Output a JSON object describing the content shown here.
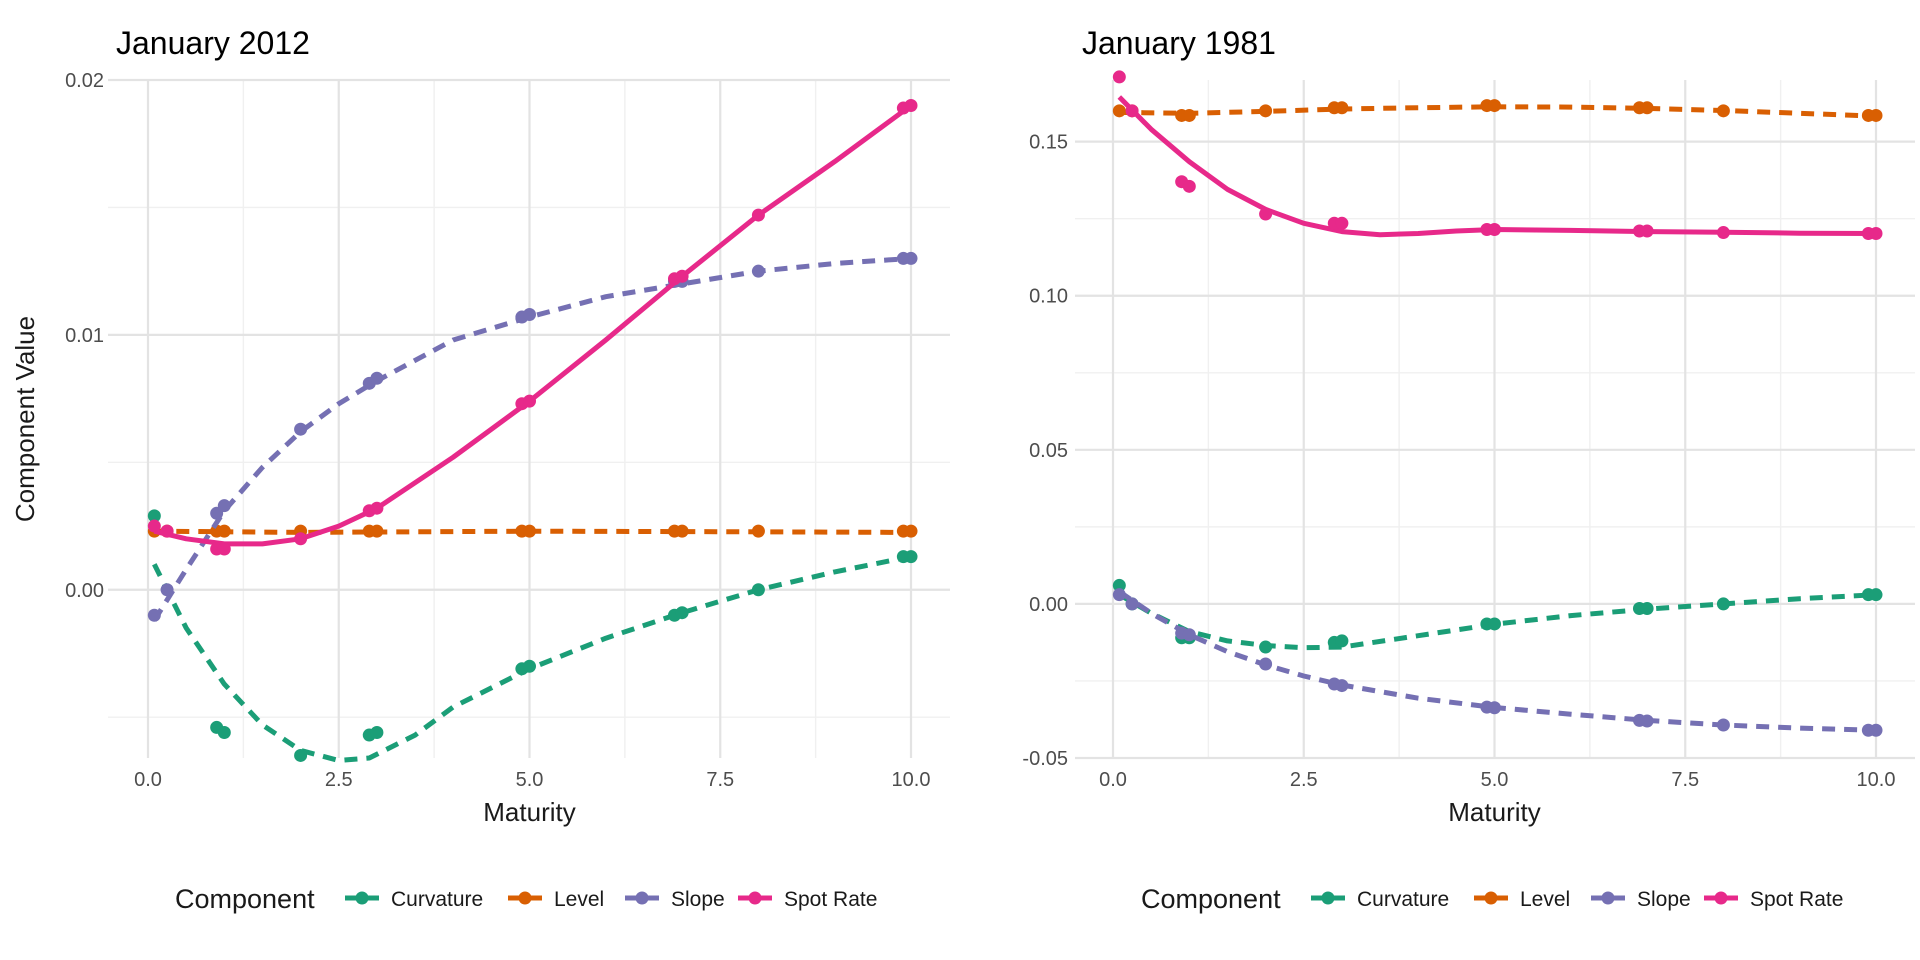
{
  "chart_data": [
    {
      "type": "line",
      "title": "January 2012",
      "xlabel": "Maturity",
      "ylabel": "Component Value",
      "xlim": [
        0,
        10
      ],
      "ylim": [
        -0.0066,
        0.02
      ],
      "xticks": [
        "0.0",
        "2.5",
        "5.0",
        "7.5",
        "10.0"
      ],
      "xtick_values": [
        0,
        2.5,
        5,
        7.5,
        10
      ],
      "yticks": [
        "0.00",
        "0.01",
        "0.02"
      ],
      "ytick_values": [
        0,
        0.01,
        0.02
      ],
      "grid": true,
      "legend_title": "Component",
      "legend_position": "bottom",
      "series": [
        {
          "name": "Curvature",
          "color": "#1B9E77",
          "line": "dashed",
          "points": [
            [
              0.083,
              0.0029
            ],
            [
              0.9,
              -0.0054
            ],
            [
              1.0,
              -0.0056
            ],
            [
              2.0,
              -0.0065
            ],
            [
              2.9,
              -0.0057
            ],
            [
              3.0,
              -0.0056
            ],
            [
              4.9,
              -0.0031
            ],
            [
              5.0,
              -0.003
            ],
            [
              6.9,
              -0.001
            ],
            [
              7.0,
              -0.0009
            ],
            [
              8.0,
              0.0
            ],
            [
              9.9,
              0.0013
            ],
            [
              10.0,
              0.0013
            ]
          ],
          "curve": [
            [
              0.083,
              0.001
            ],
            [
              0.5,
              -0.0015
            ],
            [
              1.0,
              -0.0037
            ],
            [
              1.5,
              -0.0053
            ],
            [
              2.0,
              -0.0063
            ],
            [
              2.5,
              -0.0067
            ],
            [
              2.9,
              -0.0066
            ],
            [
              3.5,
              -0.0057
            ],
            [
              4.0,
              -0.0046
            ],
            [
              5.0,
              -0.0031
            ],
            [
              6.0,
              -0.0019
            ],
            [
              7.0,
              -0.0009
            ],
            [
              8.0,
              0.0
            ],
            [
              9.0,
              0.0007
            ],
            [
              10.0,
              0.0013
            ]
          ]
        },
        {
          "name": "Level",
          "color": "#D95F02",
          "line": "dashed",
          "points": [
            [
              0.083,
              0.0023
            ],
            [
              0.25,
              0.0023
            ],
            [
              0.9,
              0.0023
            ],
            [
              1.0,
              0.0023
            ],
            [
              2.0,
              0.0023
            ],
            [
              2.9,
              0.0023
            ],
            [
              3.0,
              0.0023
            ],
            [
              4.9,
              0.0023
            ],
            [
              5.0,
              0.0023
            ],
            [
              6.9,
              0.0023
            ],
            [
              7.0,
              0.0023
            ],
            [
              8.0,
              0.0023
            ],
            [
              9.9,
              0.0023
            ],
            [
              10.0,
              0.0023
            ]
          ],
          "curve": [
            [
              0.083,
              0.0023
            ],
            [
              2.0,
              0.00225
            ],
            [
              5.0,
              0.0023
            ],
            [
              7.5,
              0.00228
            ],
            [
              10.0,
              0.00225
            ]
          ]
        },
        {
          "name": "Slope",
          "color": "#7570B3",
          "line": "dashed",
          "points": [
            [
              0.083,
              -0.001
            ],
            [
              0.25,
              0.0
            ],
            [
              0.9,
              0.003
            ],
            [
              1.0,
              0.0033
            ],
            [
              2.0,
              0.0063
            ],
            [
              2.9,
              0.0081
            ],
            [
              3.0,
              0.0083
            ],
            [
              4.9,
              0.0107
            ],
            [
              5.0,
              0.0108
            ],
            [
              6.9,
              0.0121
            ],
            [
              7.0,
              0.0121
            ],
            [
              8.0,
              0.0125
            ],
            [
              9.9,
              0.013
            ],
            [
              10.0,
              0.013
            ]
          ],
          "curve": [
            [
              0.083,
              -0.0012
            ],
            [
              0.5,
              0.0008
            ],
            [
              1.0,
              0.0031
            ],
            [
              1.5,
              0.0048
            ],
            [
              2.0,
              0.0062
            ],
            [
              2.5,
              0.0073
            ],
            [
              3.0,
              0.0082
            ],
            [
              4.0,
              0.0098
            ],
            [
              5.0,
              0.0107
            ],
            [
              6.0,
              0.0115
            ],
            [
              7.0,
              0.012
            ],
            [
              8.0,
              0.0125
            ],
            [
              9.0,
              0.0128
            ],
            [
              10.0,
              0.013
            ]
          ]
        },
        {
          "name": "Spot Rate",
          "color": "#E7298A",
          "line": "solid",
          "points": [
            [
              0.083,
              0.0025
            ],
            [
              0.25,
              0.0023
            ],
            [
              0.9,
              0.0016
            ],
            [
              1.0,
              0.0016
            ],
            [
              2.0,
              0.002
            ],
            [
              2.9,
              0.0031
            ],
            [
              3.0,
              0.0032
            ],
            [
              4.9,
              0.0073
            ],
            [
              5.0,
              0.0074
            ],
            [
              6.9,
              0.0122
            ],
            [
              7.0,
              0.0123
            ],
            [
              8.0,
              0.0147
            ],
            [
              9.9,
              0.0189
            ],
            [
              10.0,
              0.019
            ]
          ],
          "curve": [
            [
              0.083,
              0.0023
            ],
            [
              0.5,
              0.002
            ],
            [
              1.0,
              0.0018
            ],
            [
              1.5,
              0.0018
            ],
            [
              2.0,
              0.002
            ],
            [
              2.5,
              0.0025
            ],
            [
              3.0,
              0.0032
            ],
            [
              3.5,
              0.0042
            ],
            [
              4.0,
              0.0052
            ],
            [
              4.5,
              0.0063
            ],
            [
              5.0,
              0.0074
            ],
            [
              6.0,
              0.0098
            ],
            [
              7.0,
              0.0123
            ],
            [
              8.0,
              0.0147
            ],
            [
              9.0,
              0.0168
            ],
            [
              10.0,
              0.019
            ]
          ]
        }
      ]
    },
    {
      "type": "line",
      "title": "January 1981",
      "xlabel": "Maturity",
      "ylabel": "",
      "xlim": [
        0,
        10
      ],
      "ylim": [
        -0.05,
        0.17
      ],
      "xticks": [
        "0.0",
        "2.5",
        "5.0",
        "7.5",
        "10.0"
      ],
      "xtick_values": [
        0,
        2.5,
        5,
        7.5,
        10
      ],
      "yticks": [
        "-0.05",
        "0.00",
        "0.05",
        "0.10",
        "0.15"
      ],
      "ytick_values": [
        -0.05,
        0,
        0.05,
        0.1,
        0.15
      ],
      "grid": true,
      "legend_title": "Component",
      "legend_position": "bottom",
      "series": [
        {
          "name": "Curvature",
          "color": "#1B9E77",
          "line": "dashed",
          "points": [
            [
              0.083,
              0.006
            ],
            [
              0.25,
              0.0
            ],
            [
              0.9,
              -0.011
            ],
            [
              1.0,
              -0.011
            ],
            [
              2.0,
              -0.014
            ],
            [
              2.9,
              -0.0125
            ],
            [
              3.0,
              -0.012
            ],
            [
              4.9,
              -0.0065
            ],
            [
              5.0,
              -0.0065
            ],
            [
              6.9,
              -0.0015
            ],
            [
              7.0,
              -0.0015
            ],
            [
              8.0,
              0.0
            ],
            [
              9.9,
              0.003
            ],
            [
              10.0,
              0.003
            ]
          ],
          "curve": [
            [
              0.083,
              0.003
            ],
            [
              0.5,
              -0.003
            ],
            [
              1.0,
              -0.009
            ],
            [
              1.5,
              -0.012
            ],
            [
              2.0,
              -0.0135
            ],
            [
              2.5,
              -0.0142
            ],
            [
              3.0,
              -0.014
            ],
            [
              4.0,
              -0.0103
            ],
            [
              5.0,
              -0.0066
            ],
            [
              6.0,
              -0.0038
            ],
            [
              7.0,
              -0.0017
            ],
            [
              8.0,
              0.0
            ],
            [
              9.0,
              0.0017
            ],
            [
              10.0,
              0.003
            ]
          ]
        },
        {
          "name": "Level",
          "color": "#D95F02",
          "line": "dashed",
          "points": [
            [
              0.083,
              0.16
            ],
            [
              0.25,
              0.16
            ],
            [
              0.9,
              0.1585
            ],
            [
              1.0,
              0.1585
            ],
            [
              2.0,
              0.16
            ],
            [
              2.9,
              0.161
            ],
            [
              3.0,
              0.161
            ],
            [
              4.9,
              0.1617
            ],
            [
              5.0,
              0.1617
            ],
            [
              6.9,
              0.161
            ],
            [
              7.0,
              0.161
            ],
            [
              8.0,
              0.16
            ],
            [
              9.9,
              0.1585
            ],
            [
              10.0,
              0.1585
            ]
          ],
          "curve": [
            [
              0.083,
              0.1595
            ],
            [
              1.0,
              0.1592
            ],
            [
              2.0,
              0.1598
            ],
            [
              3.0,
              0.1606
            ],
            [
              4.0,
              0.161
            ],
            [
              5.0,
              0.1613
            ],
            [
              6.0,
              0.1612
            ],
            [
              7.0,
              0.1608
            ],
            [
              8.0,
              0.1601
            ],
            [
              9.0,
              0.1592
            ],
            [
              10.0,
              0.1583
            ]
          ]
        },
        {
          "name": "Slope",
          "color": "#7570B3",
          "line": "dashed",
          "points": [
            [
              0.083,
              0.003
            ],
            [
              0.25,
              0.0
            ],
            [
              0.9,
              -0.0095
            ],
            [
              1.0,
              -0.01
            ],
            [
              2.0,
              -0.0195
            ],
            [
              2.9,
              -0.026
            ],
            [
              3.0,
              -0.0265
            ],
            [
              4.9,
              -0.0335
            ],
            [
              5.0,
              -0.0337
            ],
            [
              6.9,
              -0.0378
            ],
            [
              7.0,
              -0.038
            ],
            [
              8.0,
              -0.0393
            ],
            [
              9.9,
              -0.041
            ],
            [
              10.0,
              -0.041
            ]
          ],
          "curve": [
            [
              0.083,
              0.004
            ],
            [
              0.5,
              -0.003
            ],
            [
              1.0,
              -0.01
            ],
            [
              1.5,
              -0.0155
            ],
            [
              2.0,
              -0.0198
            ],
            [
              2.5,
              -0.0234
            ],
            [
              3.0,
              -0.0263
            ],
            [
              4.0,
              -0.0306
            ],
            [
              5.0,
              -0.0336
            ],
            [
              6.0,
              -0.0358
            ],
            [
              7.0,
              -0.0378
            ],
            [
              8.0,
              -0.0393
            ],
            [
              9.0,
              -0.0403
            ],
            [
              10.0,
              -0.041
            ]
          ]
        },
        {
          "name": "Spot Rate",
          "color": "#E7298A",
          "line": "solid",
          "points": [
            [
              0.083,
              0.171
            ],
            [
              0.25,
              0.16
            ],
            [
              0.9,
              0.137
            ],
            [
              1.0,
              0.1355
            ],
            [
              2.0,
              0.1265
            ],
            [
              2.9,
              0.1235
            ],
            [
              3.0,
              0.1235
            ],
            [
              4.9,
              0.1215
            ],
            [
              5.0,
              0.1215
            ],
            [
              6.9,
              0.121
            ],
            [
              7.0,
              0.121
            ],
            [
              8.0,
              0.1205
            ],
            [
              9.9,
              0.1202
            ],
            [
              10.0,
              0.1202
            ]
          ],
          "curve": [
            [
              0.083,
              0.1645
            ],
            [
              0.5,
              0.154
            ],
            [
              1.0,
              0.1435
            ],
            [
              1.5,
              0.1345
            ],
            [
              2.0,
              0.128
            ],
            [
              2.5,
              0.1235
            ],
            [
              3.0,
              0.1208
            ],
            [
              3.5,
              0.1198
            ],
            [
              4.0,
              0.1202
            ],
            [
              4.5,
              0.121
            ],
            [
              5.0,
              0.1215
            ],
            [
              6.0,
              0.1212
            ],
            [
              7.0,
              0.1208
            ],
            [
              8.0,
              0.1206
            ],
            [
              9.0,
              0.1203
            ],
            [
              10.0,
              0.1202
            ]
          ]
        }
      ]
    }
  ]
}
